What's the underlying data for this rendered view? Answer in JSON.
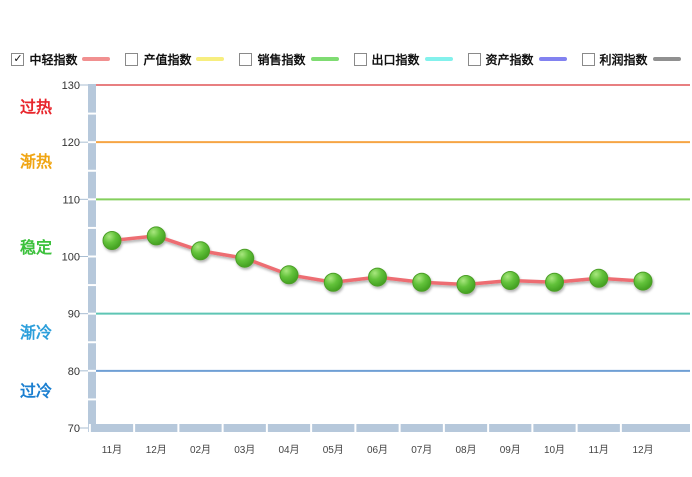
{
  "legend": {
    "items": [
      {
        "label": "中轻指数",
        "color": "#f19090",
        "checked": true
      },
      {
        "label": "产值指数",
        "color": "#f7ee7f",
        "checked": false
      },
      {
        "label": "销售指数",
        "color": "#7fdc72",
        "checked": false
      },
      {
        "label": "出口指数",
        "color": "#83f1ec",
        "checked": false
      },
      {
        "label": "资产指数",
        "color": "#8282f0",
        "checked": false
      },
      {
        "label": "利润指数",
        "color": "#909090",
        "checked": false
      }
    ]
  },
  "chart_data": {
    "type": "line",
    "x_labels": [
      "11月",
      "12月",
      "02月",
      "03月",
      "04月",
      "05月",
      "06月",
      "07月",
      "08月",
      "09月",
      "10月",
      "11月",
      "12月"
    ],
    "series": [
      {
        "name": "中轻指数",
        "line_color": "#ed6d72",
        "marker_color": "#5cbb34",
        "values": [
          102.8,
          103.6,
          101.0,
          99.7,
          96.8,
          95.5,
          96.4,
          95.5,
          95.1,
          95.8,
          95.5,
          96.2,
          95.7
        ]
      }
    ],
    "ylim": [
      70,
      130
    ],
    "y_ticks": [
      130,
      120,
      110,
      100,
      90,
      80,
      70
    ],
    "gridlines": [
      {
        "value": 130,
        "color": "#e87f81"
      },
      {
        "value": 120,
        "color": "#f6a544"
      },
      {
        "value": 110,
        "color": "#85cf5d"
      },
      {
        "value": 90,
        "color": "#5ec5b4"
      },
      {
        "value": 80,
        "color": "#6f9fd4"
      }
    ],
    "zones": [
      {
        "label": "过热",
        "color": "#e8262c",
        "center_value": 126.2
      },
      {
        "label": "渐热",
        "color": "#f0a513",
        "center_value": 116.7
      },
      {
        "label": "稳定",
        "color": "#3cc13c",
        "center_value": 101.7
      },
      {
        "label": "渐冷",
        "color": "#2d9fdb",
        "center_value": 86.8
      },
      {
        "label": "过冷",
        "color": "#1b7fd0",
        "center_value": 76.6
      }
    ],
    "axis_band_color": "#b6c8db",
    "tick_color": "#a9bed2",
    "y_label_color": "#333333",
    "x_label_color": "#444444",
    "grid_on": true,
    "legend_position": "top"
  }
}
